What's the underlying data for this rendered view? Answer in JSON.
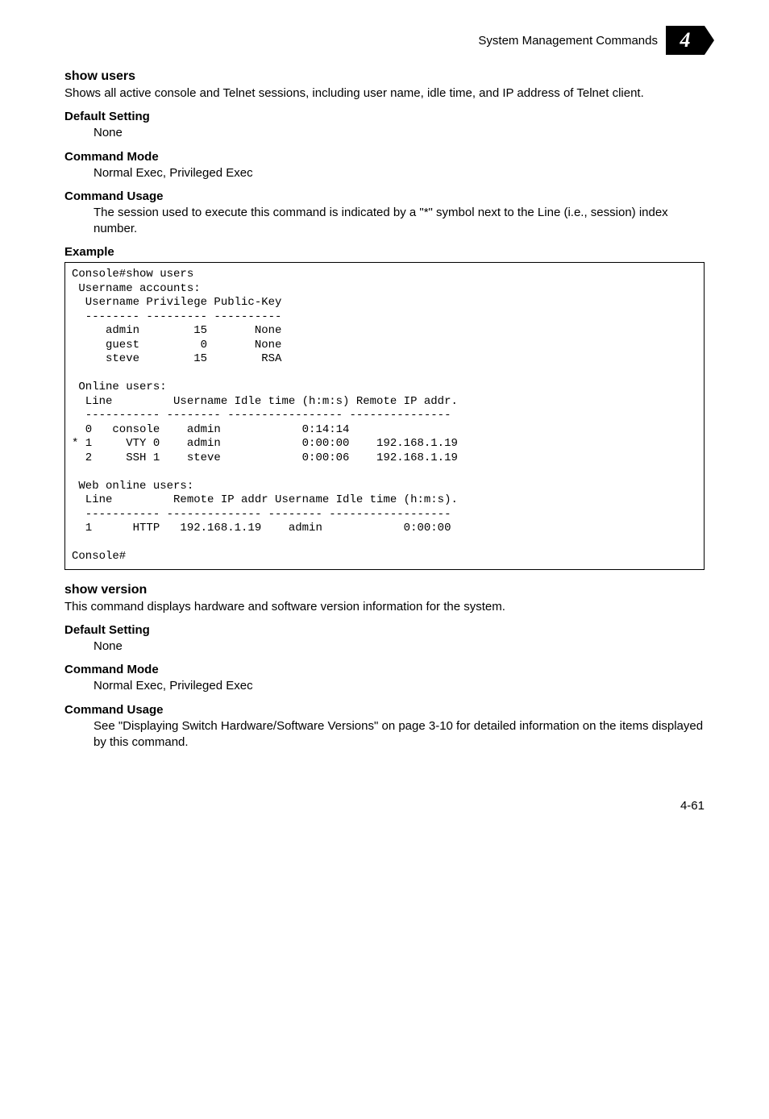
{
  "header": {
    "title": "System Management Commands",
    "chapter_number": "4"
  },
  "sections": [
    {
      "heading": "show users",
      "body": "Shows all active console and Telnet sessions, including user name, idle time, and IP address of Telnet client.",
      "subs": [
        {
          "title": "Default Setting",
          "text": "None"
        },
        {
          "title": "Command Mode",
          "text": "Normal Exec, Privileged Exec"
        },
        {
          "title": "Command Usage",
          "text": "The session used to execute this command is indicated by a \"*\" symbol next to the Line (i.e., session) index number."
        },
        {
          "title": "Example",
          "code": "Console#show users\n Username accounts:\n  Username Privilege Public-Key\n  -------- --------- ----------\n     admin        15       None\n     guest         0       None\n     steve        15        RSA\n\n Online users:\n  Line         Username Idle time (h:m:s) Remote IP addr.\n  ----------- -------- ----------------- ---------------\n  0   console    admin            0:14:14\n* 1     VTY 0    admin            0:00:00    192.168.1.19\n  2     SSH 1    steve            0:00:06    192.168.1.19\n\n Web online users:\n  Line         Remote IP addr Username Idle time (h:m:s).\n  ----------- -------------- -------- ------------------\n  1      HTTP   192.168.1.19    admin            0:00:00\n\nConsole#"
        }
      ]
    },
    {
      "heading": "show version",
      "body": "This command displays hardware and software version information for the system.",
      "subs": [
        {
          "title": "Default Setting",
          "text": "None"
        },
        {
          "title": "Command Mode",
          "text": "Normal Exec, Privileged Exec"
        },
        {
          "title": "Command Usage",
          "text": "See \"Displaying Switch Hardware/Software Versions\" on page 3-10 for detailed information on the items displayed by this command."
        }
      ]
    }
  ],
  "page_number": "4-61"
}
